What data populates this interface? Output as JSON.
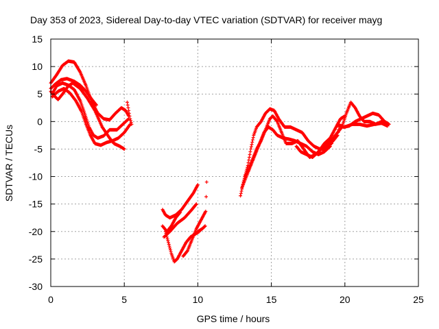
{
  "chart_data": {
    "type": "scatter",
    "title": "Day 353 of 2023, Sidereal Day-to-day VTEC variation (SDTVAR) for receiver mayg",
    "xlabel": "GPS time / hours",
    "ylabel": "SDTVAR / TECUs",
    "xlim": [
      0,
      25
    ],
    "ylim": [
      -30,
      15
    ],
    "xticks": [
      0,
      5,
      10,
      15,
      20,
      25
    ],
    "yticks": [
      -30,
      -25,
      -20,
      -15,
      -10,
      -5,
      0,
      5,
      10,
      15
    ],
    "grid": true,
    "legend": "none",
    "marker": "+",
    "series": [
      {
        "name": "SDTVAR",
        "color": "#ff0000",
        "tracks": [
          [
            [
              0.0,
              7.0
            ],
            [
              0.4,
              8.5
            ],
            [
              0.8,
              10.2
            ],
            [
              1.2,
              11.0
            ],
            [
              1.6,
              10.8
            ],
            [
              2.0,
              9.0
            ],
            [
              2.4,
              6.5
            ],
            [
              2.8,
              3.5
            ],
            [
              3.2,
              1.5
            ],
            [
              3.6,
              0.5
            ],
            [
              4.0,
              0.3
            ],
            [
              4.4,
              1.5
            ],
            [
              4.8,
              2.5
            ],
            [
              5.1,
              2.0
            ],
            [
              5.3,
              1.0
            ]
          ],
          [
            [
              0.0,
              6.0
            ],
            [
              0.3,
              6.8
            ],
            [
              0.7,
              7.6
            ],
            [
              1.1,
              7.8
            ],
            [
              1.6,
              7.3
            ],
            [
              2.0,
              6.6
            ],
            [
              2.4,
              5.5
            ],
            [
              2.8,
              4.0
            ],
            [
              3.1,
              3.0
            ]
          ],
          [
            [
              0.1,
              5.0
            ],
            [
              0.4,
              6.5
            ],
            [
              0.8,
              7.0
            ],
            [
              1.2,
              6.6
            ],
            [
              1.6,
              5.8
            ],
            [
              2.0,
              3.8
            ],
            [
              2.3,
              1.5
            ],
            [
              2.6,
              -1.0
            ],
            [
              2.9,
              -2.5
            ],
            [
              3.2,
              -3.0
            ],
            [
              3.6,
              -2.6
            ],
            [
              4.0,
              -1.5
            ],
            [
              4.5,
              -1.5
            ],
            [
              4.9,
              -0.5
            ],
            [
              5.3,
              0.5
            ]
          ],
          [
            [
              0.1,
              4.5
            ],
            [
              0.5,
              5.5
            ],
            [
              0.9,
              6.0
            ],
            [
              1.3,
              5.2
            ],
            [
              1.7,
              3.8
            ],
            [
              2.1,
              1.8
            ],
            [
              2.4,
              -0.5
            ],
            [
              2.7,
              -2.5
            ],
            [
              3.0,
              -4.0
            ],
            [
              3.4,
              -4.3
            ],
            [
              3.8,
              -3.8
            ],
            [
              4.2,
              -3.5
            ],
            [
              4.6,
              -3.0
            ],
            [
              5.0,
              -2.0
            ],
            [
              5.4,
              -0.5
            ]
          ],
          [
            [
              0.0,
              5.5
            ],
            [
              0.3,
              4.5
            ],
            [
              0.5,
              4.0
            ],
            [
              0.8,
              5.0
            ],
            [
              1.2,
              6.5
            ],
            [
              1.5,
              7.0
            ],
            [
              2.0,
              6.0
            ],
            [
              2.5,
              4.2
            ],
            [
              3.0,
              2.0
            ],
            [
              3.5,
              -1.0
            ],
            [
              4.0,
              -3.0
            ],
            [
              4.3,
              -4.0
            ],
            [
              4.7,
              -4.5
            ],
            [
              5.0,
              -5.0
            ]
          ],
          [
            [
              5.2,
              3.5
            ],
            [
              5.3,
              2.0
            ],
            [
              5.4,
              0.5
            ],
            [
              5.5,
              -0.5
            ]
          ],
          [
            [
              7.6,
              -16.0
            ],
            [
              7.8,
              -17.0
            ],
            [
              8.1,
              -17.5
            ],
            [
              8.5,
              -17.0
            ],
            [
              8.9,
              -16.0
            ],
            [
              9.3,
              -14.5
            ],
            [
              9.7,
              -13.0
            ],
            [
              10.0,
              -11.5
            ]
          ],
          [
            [
              7.6,
              -19.0
            ],
            [
              7.9,
              -20.0
            ],
            [
              8.2,
              -19.0
            ],
            [
              8.5,
              -17.5
            ],
            [
              8.8,
              -16.5
            ]
          ],
          [
            [
              7.8,
              -20.0
            ],
            [
              8.0,
              -22.0
            ],
            [
              8.2,
              -24.0
            ],
            [
              8.4,
              -25.5
            ],
            [
              8.6,
              -25.0
            ],
            [
              8.9,
              -23.5
            ],
            [
              9.2,
              -22.0
            ],
            [
              9.5,
              -21.0
            ],
            [
              9.8,
              -20.5
            ],
            [
              10.1,
              -20.0
            ]
          ],
          [
            [
              7.7,
              -21.0
            ],
            [
              8.1,
              -20.0
            ],
            [
              8.6,
              -18.5
            ],
            [
              9.1,
              -17.5
            ],
            [
              9.6,
              -16.0
            ],
            [
              9.9,
              -15.0
            ]
          ],
          [
            [
              9.0,
              -24.5
            ],
            [
              9.3,
              -23.5
            ],
            [
              9.6,
              -21.5
            ],
            [
              9.9,
              -19.5
            ],
            [
              10.2,
              -18.0
            ],
            [
              10.5,
              -16.5
            ]
          ],
          [
            [
              10.0,
              -20.0
            ],
            [
              10.3,
              -19.5
            ],
            [
              10.5,
              -19.0
            ],
            [
              10.6,
              -11.0
            ]
          ],
          [
            [
              12.9,
              -13.5
            ],
            [
              13.1,
              -11.0
            ],
            [
              13.4,
              -8.0
            ],
            [
              13.6,
              -5.0
            ],
            [
              13.8,
              -2.5
            ],
            [
              14.0,
              -1.0
            ],
            [
              14.3,
              0.0
            ],
            [
              14.6,
              1.5
            ],
            [
              14.9,
              2.3
            ],
            [
              15.2,
              2.0
            ],
            [
              15.5,
              0.5
            ],
            [
              15.9,
              -1.0
            ],
            [
              16.3,
              -1.0
            ],
            [
              16.7,
              -1.5
            ],
            [
              17.1,
              -2.0
            ],
            [
              17.5,
              -3.5
            ],
            [
              17.9,
              -4.5
            ],
            [
              18.3,
              -5.0
            ],
            [
              18.7,
              -4.5
            ],
            [
              19.1,
              -4.0
            ]
          ],
          [
            [
              13.0,
              -12.0
            ],
            [
              13.3,
              -10.0
            ],
            [
              13.6,
              -8.0
            ],
            [
              13.9,
              -6.0
            ],
            [
              14.2,
              -4.0
            ],
            [
              14.5,
              -2.0
            ],
            [
              14.8,
              -1.0
            ],
            [
              15.1,
              -1.5
            ],
            [
              15.4,
              -2.5
            ],
            [
              15.8,
              -3.0
            ],
            [
              16.2,
              -3.2
            ],
            [
              16.6,
              -3.5
            ],
            [
              17.0,
              -4.0
            ],
            [
              17.4,
              -4.5
            ],
            [
              17.8,
              -5.5
            ],
            [
              18.2,
              -6.0
            ],
            [
              18.6,
              -5.5
            ],
            [
              19.0,
              -4.5
            ]
          ],
          [
            [
              13.2,
              -10.0
            ],
            [
              13.4,
              -9.0
            ],
            [
              13.7,
              -7.0
            ],
            [
              14.0,
              -5.0
            ],
            [
              14.3,
              -3.5
            ],
            [
              14.6,
              -1.5
            ],
            [
              14.9,
              0.5
            ],
            [
              15.1,
              1.0
            ],
            [
              15.4,
              0.0
            ],
            [
              15.7,
              -2.0
            ],
            [
              16.0,
              -4.0
            ],
            [
              16.4,
              -4.0
            ],
            [
              16.8,
              -3.5
            ],
            [
              17.2,
              -5.0
            ],
            [
              17.6,
              -6.5
            ],
            [
              18.0,
              -6.0
            ],
            [
              18.4,
              -5.0
            ],
            [
              18.8,
              -4.0
            ],
            [
              19.2,
              -3.0
            ],
            [
              19.5,
              -2.0
            ],
            [
              19.8,
              -1.0
            ],
            [
              20.1,
              1.5
            ],
            [
              20.4,
              3.5
            ],
            [
              20.7,
              2.5
            ],
            [
              21.0,
              1.0
            ],
            [
              21.3,
              0.0
            ],
            [
              21.7,
              0.0
            ],
            [
              22.1,
              -0.5
            ],
            [
              22.5,
              0.0
            ],
            [
              22.9,
              -0.5
            ]
          ],
          [
            [
              16.7,
              -4.5
            ],
            [
              17.0,
              -5.5
            ],
            [
              17.4,
              -6.0
            ],
            [
              17.8,
              -6.5
            ],
            [
              18.2,
              -5.5
            ],
            [
              18.6,
              -4.0
            ],
            [
              19.0,
              -3.0
            ],
            [
              19.4,
              -1.0
            ],
            [
              19.7,
              0.5
            ],
            [
              20.0,
              1.0
            ]
          ],
          [
            [
              19.5,
              -0.5
            ],
            [
              19.9,
              -1.0
            ],
            [
              20.3,
              -0.8
            ],
            [
              20.7,
              0.0
            ],
            [
              21.1,
              0.5
            ],
            [
              21.5,
              1.0
            ],
            [
              21.9,
              1.5
            ],
            [
              22.3,
              1.2
            ],
            [
              22.7,
              0.0
            ],
            [
              23.0,
              -0.5
            ]
          ],
          [
            [
              20.0,
              -1.0
            ],
            [
              20.5,
              -0.5
            ],
            [
              21.0,
              -0.5
            ],
            [
              21.5,
              -0.8
            ],
            [
              22.0,
              -0.5
            ],
            [
              22.5,
              -0.3
            ],
            [
              22.9,
              -0.8
            ]
          ],
          [
            [
              18.3,
              -5.0
            ],
            [
              18.7,
              -5.0
            ],
            [
              19.2,
              -3.5
            ],
            [
              19.5,
              -2.5
            ],
            [
              19.6,
              -1.0
            ]
          ]
        ]
      }
    ]
  }
}
